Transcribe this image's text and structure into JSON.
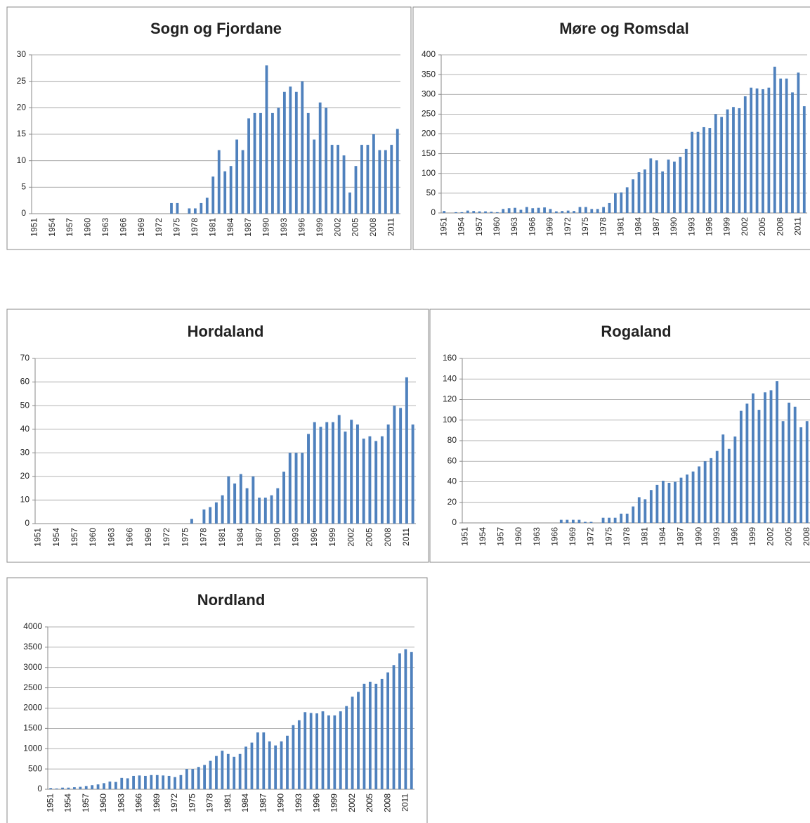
{
  "chart_data": [
    {
      "type": "bar",
      "title": "Sogn og Fjordane",
      "color": "#4f81bd",
      "grid": true,
      "categories": [
        "1951",
        null,
        null,
        "1954",
        null,
        null,
        "1957",
        null,
        null,
        "1960",
        null,
        null,
        "1963",
        null,
        null,
        "1966",
        null,
        null,
        "1969",
        null,
        null,
        "1972",
        null,
        null,
        "1975",
        null,
        null,
        "1978",
        null,
        null,
        "1981",
        null,
        null,
        "1984",
        null,
        null,
        "1987",
        null,
        null,
        "1990",
        null,
        null,
        "1993",
        null,
        null,
        "1996",
        null,
        null,
        "1999",
        null,
        null,
        "2002",
        null,
        null,
        "2005",
        null,
        null,
        "2008",
        null,
        null,
        "2011",
        null
      ],
      "values": [
        0,
        0,
        0,
        0,
        0,
        0,
        0,
        0,
        0,
        0,
        0,
        0,
        0,
        0,
        0,
        0,
        0,
        0,
        0,
        0,
        0,
        0,
        0,
        2,
        2,
        0,
        1,
        1,
        2,
        3,
        7,
        12,
        8,
        9,
        14,
        12,
        18,
        19,
        19,
        28,
        19,
        20,
        23,
        24,
        23,
        25,
        19,
        14,
        21,
        20,
        13,
        13,
        11,
        4,
        9,
        13,
        13,
        15,
        12,
        12,
        13,
        16
      ],
      "ylim": [
        0,
        30
      ],
      "yticks": [
        0,
        5,
        10,
        15,
        20,
        25,
        30
      ]
    },
    {
      "type": "bar",
      "title": "Møre og Romsdal",
      "color": "#4f81bd",
      "grid": true,
      "categories": [
        "1951",
        null,
        null,
        "1954",
        null,
        null,
        "1957",
        null,
        null,
        "1960",
        null,
        null,
        "1963",
        null,
        null,
        "1966",
        null,
        null,
        "1969",
        null,
        null,
        "1972",
        null,
        null,
        "1975",
        null,
        null,
        "1978",
        null,
        null,
        "1981",
        null,
        null,
        "1984",
        null,
        null,
        "1987",
        null,
        null,
        "1990",
        null,
        null,
        "1993",
        null,
        null,
        "1996",
        null,
        null,
        "1999",
        null,
        null,
        "2002",
        null,
        null,
        "2005",
        null,
        null,
        "2008",
        null,
        null,
        "2011",
        null
      ],
      "values": [
        5,
        0,
        2,
        2,
        6,
        5,
        4,
        4,
        3,
        2,
        10,
        12,
        13,
        8,
        15,
        12,
        13,
        14,
        10,
        4,
        5,
        6,
        5,
        15,
        15,
        10,
        10,
        15,
        25,
        50,
        52,
        65,
        85,
        103,
        110,
        138,
        133,
        105,
        135,
        130,
        142,
        162,
        205,
        205,
        217,
        215,
        250,
        243,
        262,
        268,
        265,
        295,
        317,
        315,
        313,
        317,
        370,
        340,
        340,
        305,
        355,
        270
      ],
      "ylim": [
        0,
        400
      ],
      "yticks": [
        0,
        50,
        100,
        150,
        200,
        250,
        300,
        350,
        400
      ]
    },
    {
      "type": "bar",
      "title": "Hordaland",
      "color": "#4f81bd",
      "grid": true,
      "categories": [
        "1951",
        null,
        null,
        "1954",
        null,
        null,
        "1957",
        null,
        null,
        "1960",
        null,
        null,
        "1963",
        null,
        null,
        "1966",
        null,
        null,
        "1969",
        null,
        null,
        "1972",
        null,
        null,
        "1975",
        null,
        null,
        "1978",
        null,
        null,
        "1981",
        null,
        null,
        "1984",
        null,
        null,
        "1987",
        null,
        null,
        "1990",
        null,
        null,
        "1993",
        null,
        null,
        "1996",
        null,
        null,
        "1999",
        null,
        null,
        "2002",
        null,
        null,
        "2005",
        null,
        null,
        "2008",
        null,
        null,
        "2011",
        null
      ],
      "values": [
        0,
        0,
        0,
        0,
        0,
        0,
        0,
        0,
        0,
        0,
        0,
        0,
        0,
        0,
        0,
        0,
        0,
        0,
        0,
        0,
        0,
        0,
        0,
        0,
        0,
        2,
        0,
        6,
        7,
        9,
        12,
        20,
        17,
        21,
        15,
        20,
        11,
        11,
        12,
        15,
        22,
        30,
        30,
        30,
        38,
        43,
        41,
        43,
        43,
        46,
        39,
        44,
        42,
        36,
        37,
        35,
        37,
        42,
        50,
        49,
        62,
        42
      ],
      "ylim": [
        0,
        70
      ],
      "yticks": [
        0,
        10,
        20,
        30,
        40,
        50,
        60,
        70
      ]
    },
    {
      "type": "bar",
      "title": "Rogaland",
      "color": "#4f81bd",
      "grid": true,
      "categories": [
        "1951",
        null,
        null,
        "1954",
        null,
        null,
        "1957",
        null,
        null,
        "1960",
        null,
        null,
        "1963",
        null,
        null,
        "1966",
        null,
        null,
        "1969",
        null,
        null,
        "1972",
        null,
        null,
        "1975",
        null,
        null,
        "1978",
        null,
        null,
        "1981",
        null,
        null,
        "1984",
        null,
        null,
        "1987",
        null,
        null,
        "1990",
        null,
        null,
        "1993",
        null,
        null,
        "1996",
        null,
        null,
        "1999",
        null,
        null,
        "2002",
        null,
        null,
        "2005",
        null,
        null,
        "2008"
      ],
      "values": [
        0,
        0,
        0,
        0,
        0,
        0,
        0,
        0,
        0,
        0,
        0,
        0,
        0,
        0,
        0,
        0,
        3,
        3,
        3,
        3,
        1,
        1,
        0,
        5,
        5,
        5,
        9,
        9,
        16,
        25,
        23,
        32,
        37,
        41,
        39,
        40,
        44,
        47,
        50,
        55,
        60,
        63,
        70,
        86,
        72,
        84,
        109,
        116,
        126,
        110,
        127,
        129,
        138,
        99,
        117,
        113,
        93,
        99
      ],
      "ylim": [
        0,
        160
      ],
      "yticks": [
        0,
        20,
        40,
        60,
        80,
        100,
        120,
        140,
        160
      ]
    },
    {
      "type": "bar",
      "title": "Nordland",
      "color": "#4f81bd",
      "grid": true,
      "categories": [
        "1951",
        null,
        null,
        "1954",
        null,
        null,
        "1957",
        null,
        null,
        "1960",
        null,
        null,
        "1963",
        null,
        null,
        "1966",
        null,
        null,
        "1969",
        null,
        null,
        "1972",
        null,
        null,
        "1975",
        null,
        null,
        "1978",
        null,
        null,
        "1981",
        null,
        null,
        "1984",
        null,
        null,
        "1987",
        null,
        null,
        "1990",
        null,
        null,
        "1993",
        null,
        null,
        "1996",
        null,
        null,
        "1999",
        null,
        null,
        "2002",
        null,
        null,
        "2005",
        null,
        null,
        "2008",
        null,
        null,
        "2011",
        null
      ],
      "values": [
        30,
        20,
        40,
        40,
        50,
        60,
        80,
        100,
        120,
        150,
        190,
        180,
        280,
        270,
        330,
        340,
        330,
        350,
        350,
        340,
        330,
        300,
        350,
        500,
        500,
        550,
        600,
        700,
        820,
        950,
        870,
        800,
        870,
        1050,
        1150,
        1400,
        1400,
        1180,
        1080,
        1180,
        1320,
        1580,
        1700,
        1900,
        1880,
        1870,
        1920,
        1820,
        1820,
        1920,
        2050,
        2280,
        2400,
        2600,
        2650,
        2600,
        2720,
        2880,
        3060,
        3350,
        3450,
        3380
      ],
      "ylim": [
        0,
        4000
      ],
      "yticks": [
        0,
        500,
        1000,
        1500,
        2000,
        2500,
        3000,
        3500,
        4000
      ]
    }
  ]
}
